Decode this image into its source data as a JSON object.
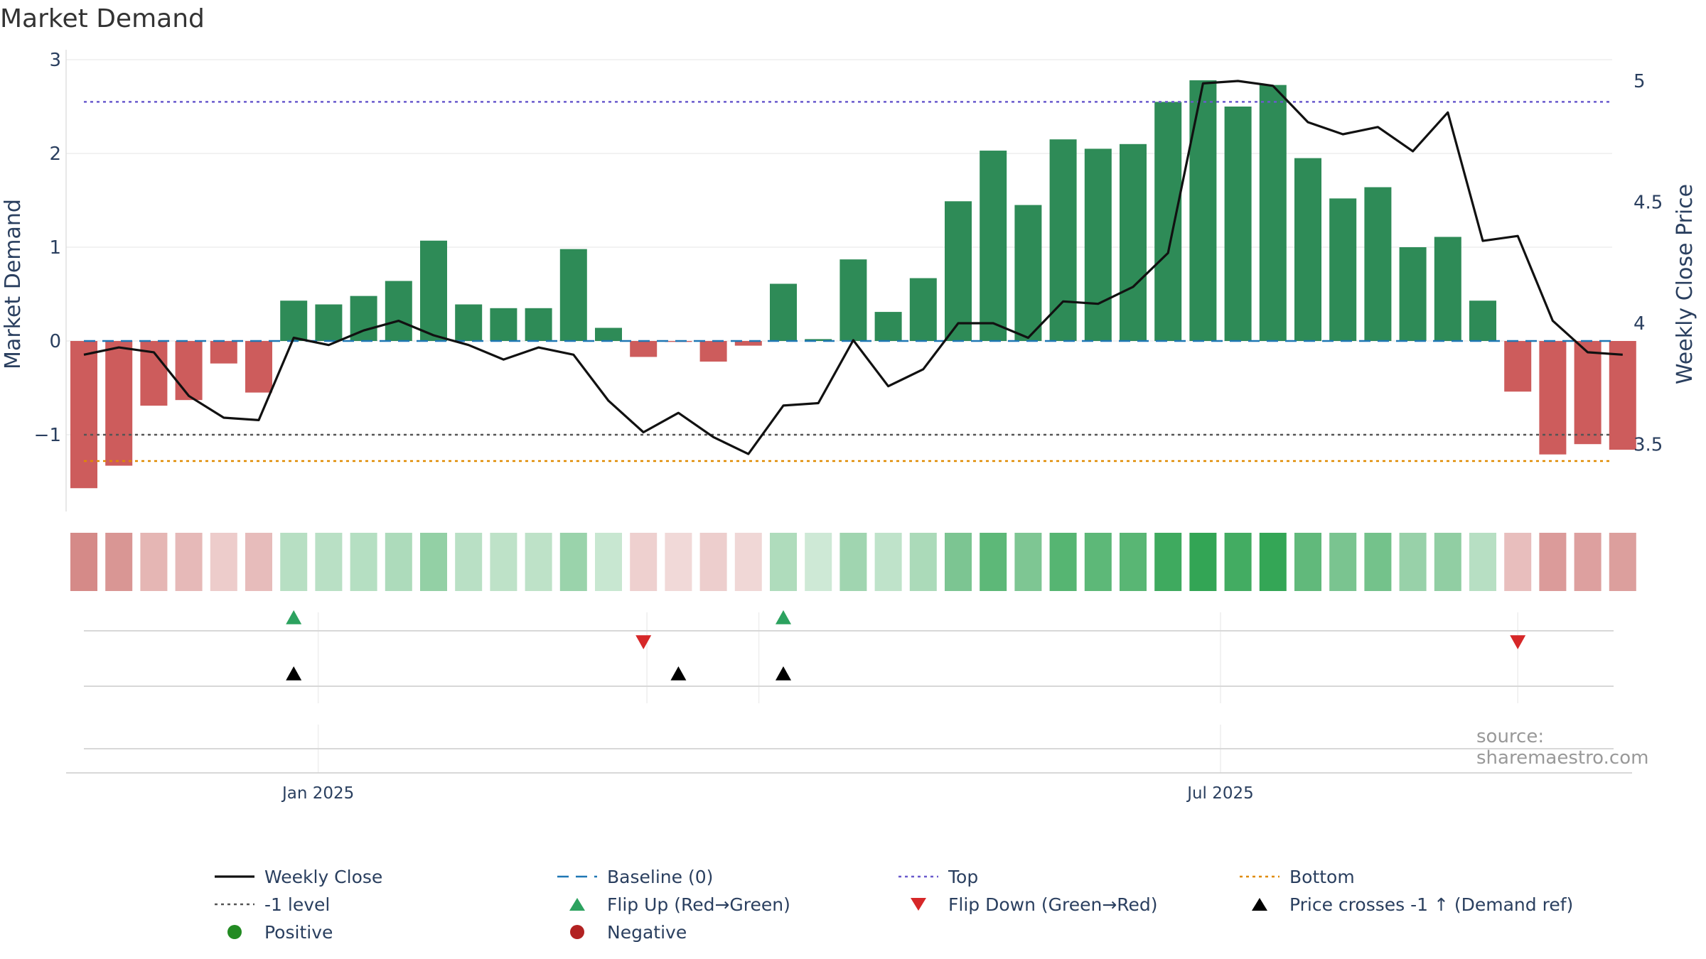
{
  "title": "Market Demand",
  "source": "source: sharemaestro.com",
  "colors": {
    "positive_bar": "#2e8b57",
    "negative_bar": "#cd5c5c",
    "price_line": "#111111",
    "baseline": "#1f77b4",
    "top": "#6a5acd",
    "bottom": "#e08a00",
    "minus_one": "#555555",
    "flip_up": "#2ca25f",
    "flip_down": "#d62728",
    "cross": "#000000",
    "positive_dot": "#228b22",
    "negative_dot": "#b22222"
  },
  "chart_data": {
    "type": "bar",
    "title": "Market Demand",
    "ylabel": "Market Demand",
    "y2label": "Weekly Close Price",
    "ylim": [
      -1.8,
      3.0
    ],
    "y2lim": [
      3.3,
      5.07
    ],
    "yticks": [
      "3",
      "2",
      "1",
      "0",
      "−1"
    ],
    "yticks_values": [
      3,
      2,
      1,
      0,
      -1
    ],
    "y2ticks": [
      "5",
      "4.5",
      "4",
      "3.5"
    ],
    "y2ticks_values": [
      5,
      4.5,
      4,
      3.5
    ],
    "xticks": [
      "Jan 2025",
      "Jul 2025"
    ],
    "xticks_week_index": [
      6.7,
      32.5
    ],
    "reference_lines": {
      "baseline": 0,
      "top": 2.55,
      "bottom": -1.28,
      "minus_one": -1
    },
    "demand": [
      -1.57,
      -1.33,
      -0.69,
      -0.63,
      -0.24,
      -0.55,
      0.43,
      0.39,
      0.48,
      0.64,
      1.07,
      0.39,
      0.35,
      0.35,
      0.98,
      0.14,
      -0.17,
      -0.01,
      -0.22,
      -0.05,
      0.61,
      0.02,
      0.87,
      0.31,
      0.67,
      1.49,
      2.03,
      1.45,
      2.15,
      2.05,
      2.1,
      2.55,
      2.78,
      2.5,
      2.73,
      1.95,
      1.52,
      1.64,
      1.0,
      1.11,
      0.43,
      -0.54,
      -1.21,
      -1.1,
      -1.16
    ],
    "weekly_close": [
      3.87,
      3.9,
      3.88,
      3.7,
      3.61,
      3.6,
      3.94,
      3.91,
      3.97,
      4.01,
      3.95,
      3.91,
      3.85,
      3.9,
      3.87,
      3.68,
      3.55,
      3.63,
      3.53,
      3.46,
      3.66,
      3.67,
      3.93,
      3.74,
      3.81,
      4.0,
      4.0,
      3.94,
      4.09,
      4.08,
      4.15,
      4.29,
      4.99,
      5.0,
      4.98,
      4.83,
      4.78,
      4.81,
      4.71,
      4.87,
      4.34,
      4.36,
      4.01,
      3.88,
      3.87
    ],
    "flip_up_weeks": [
      6,
      20
    ],
    "flip_down_weeks": [
      16,
      41
    ],
    "price_cross_weeks": [
      6,
      17,
      20
    ],
    "legend": [
      {
        "key": "close",
        "label": "Weekly Close",
        "symbol": "line",
        "color": "#111111"
      },
      {
        "key": "baseline",
        "label": "Baseline (0)",
        "symbol": "dash",
        "color": "#1f77b4"
      },
      {
        "key": "top",
        "label": "Top",
        "symbol": "dot-line",
        "color": "#6a5acd"
      },
      {
        "key": "bottom",
        "label": "Bottom",
        "symbol": "dot-line",
        "color": "#e08a00"
      },
      {
        "key": "minus_one",
        "label": "-1 level",
        "symbol": "dot-line",
        "color": "#555555"
      },
      {
        "key": "flip_up",
        "label": "Flip Up (Red→Green)",
        "symbol": "tri-up",
        "color": "#2ca25f"
      },
      {
        "key": "flip_down",
        "label": "Flip Down (Green→Red)",
        "symbol": "tri-down",
        "color": "#d62728"
      },
      {
        "key": "cross",
        "label": "Price crosses -1 ↑ (Demand ref)",
        "symbol": "tri-up",
        "color": "#000000"
      },
      {
        "key": "positive",
        "label": "Positive",
        "symbol": "circle",
        "color": "#228b22"
      },
      {
        "key": "negative",
        "label": "Negative",
        "symbol": "circle",
        "color": "#b22222"
      }
    ]
  }
}
